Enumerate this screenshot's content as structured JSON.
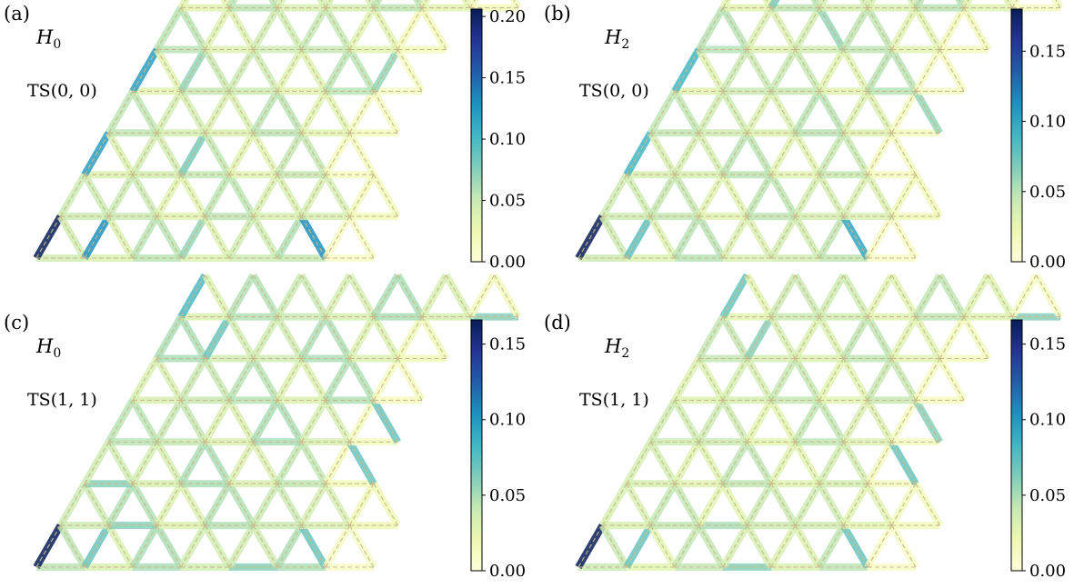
{
  "colormap": {
    "name": "YlGnBu",
    "stops": [
      "#ffffd9",
      "#edf8b1",
      "#c7e9b4",
      "#7fcdbb",
      "#41b6c4",
      "#1d91c0",
      "#225ea8",
      "#253494",
      "#081d58"
    ]
  },
  "panels": [
    {
      "tag": "(a)",
      "hamiltonian_base": "H",
      "hamiltonian_sub": "0",
      "state": "TS(0, 0)",
      "colorbar_max": 0.206,
      "colorbar_ticks": [
        "0.00",
        "0.05",
        "0.10",
        "0.15",
        "0.20"
      ],
      "base_level": 0.045,
      "highlights": [
        {
          "row": 0,
          "k": 0,
          "type": "L",
          "value": 0.206
        },
        {
          "row": 0,
          "k": 1,
          "type": "L",
          "value": 0.13
        },
        {
          "row": 0,
          "k": 3,
          "type": "L",
          "value": 0.07
        },
        {
          "row": 0,
          "k": 5,
          "type": "L",
          "value": 0.06
        },
        {
          "row": 0,
          "k": 5,
          "type": "R",
          "value": 0.13
        },
        {
          "row": 2,
          "k": 0,
          "type": "L",
          "value": 0.12
        },
        {
          "row": 2,
          "k": 2,
          "type": "L",
          "value": 0.08
        },
        {
          "row": 4,
          "k": 0,
          "type": "L",
          "value": 0.12
        },
        {
          "row": 4,
          "k": 1,
          "type": "L",
          "value": 0.07
        },
        {
          "row": 4,
          "k": 5,
          "type": "L",
          "value": 0.07
        },
        {
          "row": 4,
          "k": 6,
          "type": "B",
          "value": 0.06
        },
        {
          "row": 5,
          "k": 6,
          "type": "B",
          "value": 0.06
        }
      ]
    },
    {
      "tag": "(b)",
      "hamiltonian_base": "H",
      "hamiltonian_sub": "2",
      "state": "TS(0, 0)",
      "colorbar_max": 0.18,
      "colorbar_ticks": [
        "0.00",
        "0.05",
        "0.10",
        "0.15"
      ],
      "base_level": 0.04,
      "highlights": [
        {
          "row": 0,
          "k": 0,
          "type": "L",
          "value": 0.18
        },
        {
          "row": 0,
          "k": 1,
          "type": "L",
          "value": 0.08
        },
        {
          "row": 0,
          "k": 5,
          "type": "R",
          "value": 0.1
        },
        {
          "row": 2,
          "k": 0,
          "type": "L",
          "value": 0.09
        },
        {
          "row": 3,
          "k": 5,
          "type": "R",
          "value": 0.06
        },
        {
          "row": 4,
          "k": 0,
          "type": "L",
          "value": 0.09
        },
        {
          "row": 5,
          "k": 2,
          "type": "R",
          "value": 0.06
        },
        {
          "row": 6,
          "k": 1,
          "type": "L",
          "value": 0.07
        }
      ]
    },
    {
      "tag": "(c)",
      "hamiltonian_base": "H",
      "hamiltonian_sub": "0",
      "state": "TS(1, 1)",
      "colorbar_max": 0.166,
      "colorbar_ticks": [
        "0.00",
        "0.05",
        "0.10",
        "0.15"
      ],
      "base_level": 0.04,
      "highlights": [
        {
          "row": 0,
          "k": 0,
          "type": "L",
          "value": 0.166
        },
        {
          "row": 0,
          "k": 1,
          "type": "L",
          "value": 0.07
        },
        {
          "row": 0,
          "k": 4,
          "type": "B",
          "value": 0.06
        },
        {
          "row": 0,
          "k": 5,
          "type": "R",
          "value": 0.07
        },
        {
          "row": 1,
          "k": 1,
          "type": "B",
          "value": 0.06
        },
        {
          "row": 2,
          "k": 5,
          "type": "R",
          "value": 0.07
        },
        {
          "row": 2,
          "k": 0,
          "type": "B",
          "value": 0.06
        },
        {
          "row": 3,
          "k": 5,
          "type": "R",
          "value": 0.07
        },
        {
          "row": 5,
          "k": 1,
          "type": "L",
          "value": 0.07
        },
        {
          "row": 6,
          "k": 0,
          "type": "L",
          "value": 0.08
        },
        {
          "row": 6,
          "k": 6,
          "type": "B",
          "value": 0.06
        }
      ]
    },
    {
      "tag": "(d)",
      "hamiltonian_base": "H",
      "hamiltonian_sub": "2",
      "state": "TS(1, 1)",
      "colorbar_max": 0.166,
      "colorbar_ticks": [
        "0.00",
        "0.05",
        "0.10",
        "0.15"
      ],
      "base_level": 0.035,
      "highlights": [
        {
          "row": 0,
          "k": 0,
          "type": "L",
          "value": 0.166
        },
        {
          "row": 0,
          "k": 1,
          "type": "L",
          "value": 0.07
        },
        {
          "row": 0,
          "k": 5,
          "type": "R",
          "value": 0.07
        },
        {
          "row": 0,
          "k": 3,
          "type": "B",
          "value": 0.06
        },
        {
          "row": 1,
          "k": 2,
          "type": "B",
          "value": 0.05
        },
        {
          "row": 2,
          "k": 5,
          "type": "R",
          "value": 0.07
        },
        {
          "row": 3,
          "k": 5,
          "type": "R",
          "value": 0.06
        },
        {
          "row": 5,
          "k": 1,
          "type": "L",
          "value": 0.06
        },
        {
          "row": 6,
          "k": 0,
          "type": "L",
          "value": 0.07
        },
        {
          "row": 6,
          "k": 6,
          "type": "B",
          "value": 0.06
        }
      ]
    }
  ]
}
